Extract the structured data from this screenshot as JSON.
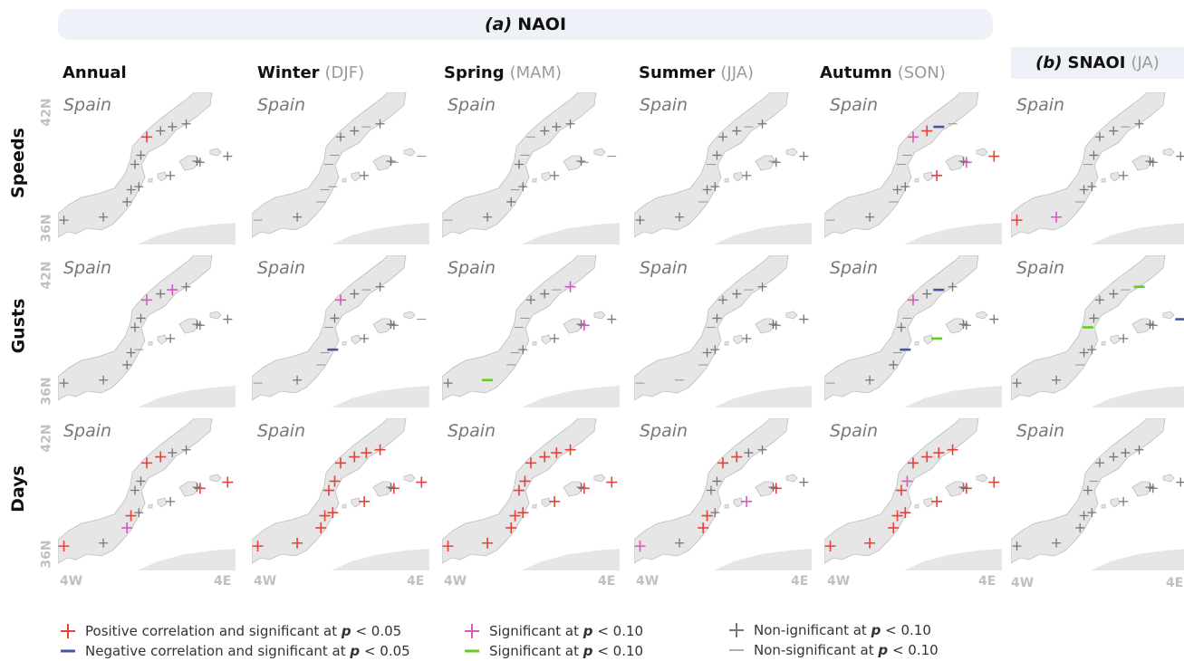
{
  "title_a": {
    "tag": "(a)",
    "name": "NAOI"
  },
  "title_b": {
    "tag": "(b)",
    "name": "SNAOI",
    "sub": "(JA)"
  },
  "columns": [
    {
      "name": "Annual",
      "sub": ""
    },
    {
      "name": "Winter",
      "sub": "(DJF)"
    },
    {
      "name": "Spring",
      "sub": "(MAM)"
    },
    {
      "name": "Summer",
      "sub": "(JJA)"
    },
    {
      "name": "Autumn",
      "sub": "(SON)"
    }
  ],
  "rows": [
    "Speeds",
    "Gusts",
    "Days"
  ],
  "map_label": "Spain",
  "lat_labels": {
    "top": "42N",
    "bottom": "36N"
  },
  "lon_labels": {
    "left": "4W",
    "right": "4E"
  },
  "legend": [
    {
      "text": "Positive correlation and significant at",
      "p": "p",
      "thr": "< 0.05"
    },
    {
      "text": "Negative correlation and significant at",
      "p": "p",
      "thr": "< 0.05"
    },
    {
      "text": "Significant at",
      "p": "p",
      "thr": "< 0.10"
    },
    {
      "text": "Significant at",
      "p": "p",
      "thr": "< 0.10"
    },
    {
      "text": "Non-ignificant at",
      "p": "p",
      "thr": "< 0.10"
    },
    {
      "text": "Non-significant at",
      "p": "p",
      "thr": "< 0.10"
    }
  ],
  "colors": {
    "pos_sig05": "#e8413a",
    "neg_sig05": "#4455a5",
    "pos_sig10": "#d957c0",
    "neg_sig10": "#66cc22",
    "pos_ns": "#777777",
    "neg_ns": "#999999",
    "land": "#e6e6e6",
    "coast": "#bdbdbd"
  },
  "chart_data": {
    "type": "scatter",
    "description_keys": "P = positive p<0.05, N = negative p<0.05, p = positive p<0.10, n = negative p<0.10, G = positive non-sig, g = negative non-sig",
    "xlim": [
      -4.5,
      4.5
    ],
    "ylim": [
      35.5,
      43.0
    ],
    "stations": [
      {
        "lon": -4.2,
        "lat": 36.7
      },
      {
        "lon": -2.2,
        "lat": 36.85
      },
      {
        "lon": -1.0,
        "lat": 37.6
      },
      {
        "lon": -0.8,
        "lat": 38.2
      },
      {
        "lon": -0.4,
        "lat": 38.35
      },
      {
        "lon": -0.6,
        "lat": 39.45
      },
      {
        "lon": -0.3,
        "lat": 39.9
      },
      {
        "lon": 0.0,
        "lat": 40.8
      },
      {
        "lon": 0.7,
        "lat": 41.1
      },
      {
        "lon": 1.3,
        "lat": 41.3
      },
      {
        "lon": 2.0,
        "lat": 41.45
      },
      {
        "lon": 1.2,
        "lat": 38.9
      },
      {
        "lon": 2.7,
        "lat": 39.55
      },
      {
        "lon": 2.55,
        "lat": 39.6
      },
      {
        "lon": 4.1,
        "lat": 39.85
      }
    ],
    "values": [
      [
        "G",
        "G",
        "G",
        "G",
        "G",
        "G",
        "G",
        "P",
        "G",
        "G",
        "G",
        "G",
        "G",
        "G",
        "G"
      ],
      [
        "g",
        "G",
        "g",
        "g",
        "g",
        "g",
        "g",
        "G",
        "G",
        "g",
        "G",
        "G",
        "g",
        "G",
        "g"
      ],
      [
        "g",
        "G",
        "G",
        "g",
        "G",
        "G",
        "g",
        "g",
        "G",
        "G",
        "G",
        "G",
        "g",
        "G",
        "g"
      ],
      [
        "G",
        "G",
        "g",
        "G",
        "G",
        "g",
        "G",
        "G",
        "G",
        "g",
        "G",
        "G",
        "G",
        "g",
        "G"
      ],
      [
        "g",
        "G",
        "g",
        "G",
        "G",
        "g",
        "g",
        "p",
        "P",
        "N",
        "g",
        "P",
        "p",
        "G",
        "P"
      ],
      [
        "P",
        "p",
        "g",
        "G",
        "G",
        "g",
        "G",
        "G",
        "G",
        "g",
        "G",
        "G",
        "G",
        "G",
        "G"
      ],
      [
        "G",
        "G",
        "G",
        "G",
        "g",
        "G",
        "G",
        "p",
        "G",
        "p",
        "G",
        "G",
        "G",
        "G",
        "G"
      ],
      [
        "g",
        "G",
        "g",
        "g",
        "N",
        "g",
        "G",
        "p",
        "G",
        "g",
        "G",
        "G",
        "G",
        "G",
        "g"
      ],
      [
        "G",
        "n",
        "g",
        "g",
        "G",
        "g",
        "g",
        "G",
        "G",
        "g",
        "p",
        "G",
        "p",
        "G",
        "G"
      ],
      [
        "g",
        "g",
        "g",
        "G",
        "G",
        "g",
        "G",
        "G",
        "G",
        "g",
        "G",
        "G",
        "G",
        "G",
        "G"
      ],
      [
        "g",
        "G",
        "G",
        "g",
        "N",
        "G",
        "g",
        "p",
        "G",
        "N",
        "G",
        "n",
        "G",
        "G",
        "G"
      ],
      [
        "G",
        "G",
        "g",
        "G",
        "G",
        "n",
        "G",
        "G",
        "G",
        "g",
        "n",
        "G",
        "G",
        "G",
        "N"
      ],
      [
        "P",
        "G",
        "p",
        "P",
        "G",
        "G",
        "G",
        "P",
        "P",
        "G",
        "G",
        "G",
        "P",
        "G",
        "P"
      ],
      [
        "P",
        "P",
        "P",
        "P",
        "P",
        "P",
        "P",
        "P",
        "P",
        "P",
        "P",
        "P",
        "P",
        "G",
        "P"
      ],
      [
        "P",
        "P",
        "P",
        "P",
        "P",
        "P",
        "P",
        "P",
        "P",
        "P",
        "P",
        "P",
        "P",
        "G",
        "P"
      ],
      [
        "p",
        "G",
        "P",
        "P",
        "G",
        "G",
        "G",
        "P",
        "P",
        "G",
        "G",
        "p",
        "P",
        "G",
        "G"
      ],
      [
        "P",
        "P",
        "P",
        "P",
        "P",
        "P",
        "p",
        "P",
        "P",
        "P",
        "P",
        "P",
        "P",
        "G",
        "P"
      ],
      [
        "G",
        "G",
        "G",
        "G",
        "G",
        "G",
        "g",
        "G",
        "G",
        "G",
        "G",
        "G",
        "G",
        "G",
        "G"
      ]
    ]
  }
}
